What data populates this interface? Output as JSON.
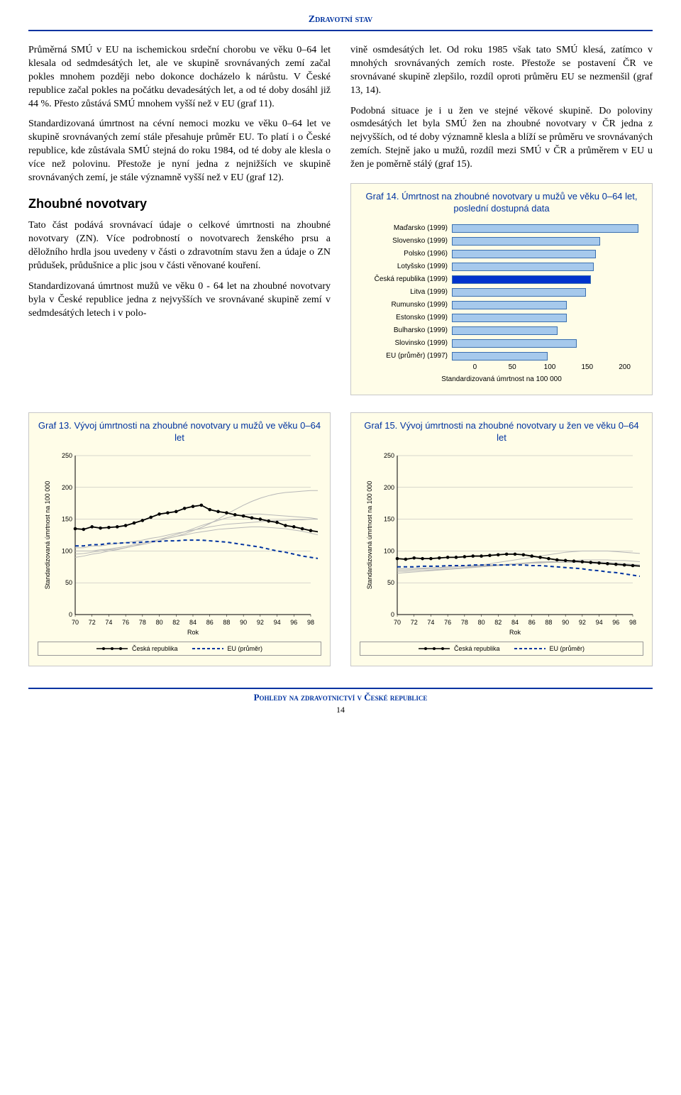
{
  "header": "Zdravotní stav",
  "footer": "Pohledy na zdravotnictví v České republice",
  "page_number": "14",
  "col_left": {
    "p1": "Průměrná SMÚ v EU na ischemickou srdeční chorobu ve věku 0–64 let klesala od sedmdesátých let, ale ve skupině srovnávaných zemí začal pokles mnohem později nebo dokonce docházelo k nárůstu. V České republice začal pokles na počátku devadesátých let, a od té doby dosáhl již 44 %. Přesto zůstává SMÚ mnohem vyšší než v EU (graf 11).",
    "p2": "Standardizovaná úmrtnost na cévní nemoci mozku ve věku 0–64 let ve skupině srovnávaných zemí stále přesahuje průměr EU. To platí i o České republice, kde zůstávala SMÚ stejná do roku 1984, od té doby ale klesla o více než polovinu. Přestože je nyní jedna z nejnižších ve skupině srovnávaných zemí, je stále významně vyšší než v EU (graf 12).",
    "h2": "Zhoubné novotvary",
    "p3": "Tato část podává srovnávací údaje o celkové úmrtnosti na zhoubné novotvary (ZN). Více podrobností o novotvarech ženského prsu a děložního hrdla jsou uvedeny v části o zdravotním stavu žen a údaje o ZN průdušek, průdušnice a plic jsou v části věnované kouření.",
    "p4": "Standardizovaná úmrtnost mužů ve věku 0 - 64 let na zhoubné novotvary byla v České republice jedna z nejvyšších ve srovnávané skupině zemí v sedmdesátých letech i v polo-"
  },
  "col_right": {
    "p1": "vině osmdesátých let. Od roku 1985 však tato SMÚ klesá, zatímco v mnohých srovnávaných zemích roste. Přestože se postavení ČR ve srovnávané skupině zlepšilo, rozdíl oproti průměru EU se nezmenšil (graf 13, 14).",
    "p2": "Podobná situace je i u žen ve stejné věkové skupině. Do poloviny osmdesátých let byla SMÚ žen na zhoubné novotvary v ČR jedna z nejvyšších, od té doby významně klesla a blíží se průměru ve srovnávaných zemích. Stejně jako u mužů, rozdíl mezi SMÚ v ČR a průměrem v EU u žen je poměrně stálý (graf 15)."
  },
  "chart14": {
    "type": "bar",
    "title": "Graf 14. Úmrtnost na zhoubné novotvary u mužů ve věku 0–64 let, poslední dostupná data",
    "xlim": [
      0,
      200
    ],
    "xtick_step": 50,
    "xlabel": "Standardizovaná úmrtnost na 100 000",
    "bar_color": "#a6c9ec",
    "highlight_color": "#0033cc",
    "border_color": "#3a6fb0",
    "background_color": "#fffde8",
    "label_fontsize": 10,
    "rows": [
      {
        "label": "Maďarsko (1999)",
        "value": 195,
        "highlight": false
      },
      {
        "label": "Slovensko (1999)",
        "value": 155,
        "highlight": false
      },
      {
        "label": "Polsko (1996)",
        "value": 150,
        "highlight": false
      },
      {
        "label": "Lotyšsko (1999)",
        "value": 148,
        "highlight": false
      },
      {
        "label": "Česká republika (1999)",
        "value": 145,
        "highlight": true
      },
      {
        "label": "Litva (1999)",
        "value": 140,
        "highlight": false
      },
      {
        "label": "Rumunsko (1999)",
        "value": 120,
        "highlight": false
      },
      {
        "label": "Estonsko (1999)",
        "value": 120,
        "highlight": false
      },
      {
        "label": "Bulharsko (1999)",
        "value": 110,
        "highlight": false
      },
      {
        "label": "Slovinsko (1999)",
        "value": 130,
        "highlight": false
      },
      {
        "label": "EU (průměr) (1997)",
        "value": 100,
        "highlight": false
      }
    ]
  },
  "chart13": {
    "type": "line",
    "title": "Graf 13. Vývoj úmrtnosti na zhoubné novotvary u mužů ve věku 0–64 let",
    "ylabel": "Standardizovaná úmrtnost na 100 000",
    "xlabel": "Rok",
    "ylim": [
      0,
      250
    ],
    "ytick_step": 50,
    "xlim": [
      70,
      98
    ],
    "xtick_step": 2,
    "background_color": "#fffde8",
    "grid_color": "#b0b0b0",
    "cr_color": "#000000",
    "eu_color": "#0033a0",
    "other_color": "#b8b8b8",
    "cr_series": [
      135,
      134,
      138,
      136,
      137,
      138,
      140,
      144,
      148,
      153,
      158,
      160,
      162,
      167,
      170,
      172,
      165,
      162,
      160,
      157,
      155,
      152,
      150,
      147,
      145,
      140,
      138,
      135,
      132,
      130
    ],
    "eu_series": [
      108,
      108,
      110,
      110,
      112,
      112,
      113,
      113,
      114,
      115,
      115,
      116,
      116,
      117,
      117,
      117,
      116,
      115,
      114,
      112,
      110,
      108,
      106,
      103,
      100,
      98,
      95,
      92,
      90,
      88
    ],
    "others": [
      [
        95,
        96,
        98,
        100,
        102,
        103,
        105,
        108,
        110,
        113,
        116,
        120,
        123,
        127,
        132,
        137,
        143,
        150,
        158,
        165,
        172,
        178,
        183,
        187,
        190,
        192,
        193,
        194,
        195,
        195
      ],
      [
        90,
        92,
        95,
        97,
        100,
        102,
        105,
        108,
        112,
        115,
        118,
        122,
        126,
        130,
        135,
        140,
        144,
        148,
        152,
        155,
        157,
        158,
        158,
        157,
        156,
        155,
        154,
        153,
        152,
        150
      ],
      [
        105,
        105,
        108,
        108,
        110,
        112,
        113,
        115,
        117,
        120,
        122,
        125,
        128,
        130,
        133,
        135,
        138,
        140,
        142,
        143,
        144,
        145,
        146,
        147,
        148,
        148,
        149,
        149,
        150,
        150
      ],
      [
        100,
        100,
        100,
        102,
        103,
        105,
        107,
        110,
        112,
        115,
        118,
        120,
        123,
        125,
        128,
        130,
        132,
        134,
        135,
        136,
        137,
        138,
        138,
        137,
        136,
        135,
        133,
        131,
        128,
        125
      ]
    ],
    "legend": {
      "cr": "Česká republika",
      "eu": "EU (průměr)"
    }
  },
  "chart15": {
    "type": "line",
    "title": "Graf 15. Vývoj úmrtnosti na zhoubné novotvary u žen ve věku 0–64 let",
    "ylabel": "Standardizovaná úmrtnost na 100 000",
    "xlabel": "Rok",
    "ylim": [
      0,
      250
    ],
    "ytick_step": 50,
    "xlim": [
      70,
      98
    ],
    "xtick_step": 2,
    "background_color": "#fffde8",
    "grid_color": "#b0b0b0",
    "cr_color": "#000000",
    "eu_color": "#0033a0",
    "other_color": "#b8b8b8",
    "cr_series": [
      88,
      87,
      89,
      88,
      88,
      89,
      90,
      90,
      91,
      92,
      92,
      93,
      94,
      95,
      95,
      94,
      92,
      90,
      88,
      86,
      85,
      84,
      83,
      82,
      81,
      80,
      79,
      78,
      77,
      76
    ],
    "eu_series": [
      75,
      75,
      75,
      76,
      76,
      76,
      77,
      77,
      77,
      78,
      78,
      78,
      78,
      78,
      78,
      78,
      77,
      77,
      76,
      75,
      74,
      73,
      72,
      70,
      69,
      67,
      66,
      64,
      62,
      60
    ],
    "others": [
      [
        70,
        70,
        71,
        72,
        72,
        73,
        74,
        75,
        76,
        77,
        78,
        80,
        82,
        84,
        86,
        88,
        90,
        92,
        94,
        96,
        98,
        99,
        100,
        100,
        100,
        100,
        99,
        98,
        97,
        96
      ],
      [
        65,
        66,
        67,
        68,
        69,
        70,
        71,
        72,
        73,
        74,
        75,
        76,
        77,
        78,
        79,
        80,
        81,
        82,
        83,
        84,
        85,
        85,
        86,
        86,
        86,
        86,
        85,
        85,
        84,
        83
      ],
      [
        72,
        72,
        73,
        73,
        74,
        74,
        75,
        75,
        76,
        76,
        77,
        78,
        78,
        79,
        80,
        80,
        81,
        81,
        82,
        82,
        82,
        82,
        82,
        81,
        81,
        80,
        80,
        79,
        78,
        77
      ],
      [
        68,
        68,
        69,
        70,
        70,
        71,
        72,
        73,
        74,
        75,
        76,
        77,
        78,
        79,
        80,
        81,
        82,
        83,
        83,
        84,
        84,
        84,
        84,
        83,
        83,
        82,
        81,
        80,
        79,
        78
      ]
    ],
    "legend": {
      "cr": "Česká republika",
      "eu": "EU (průměr)"
    }
  }
}
